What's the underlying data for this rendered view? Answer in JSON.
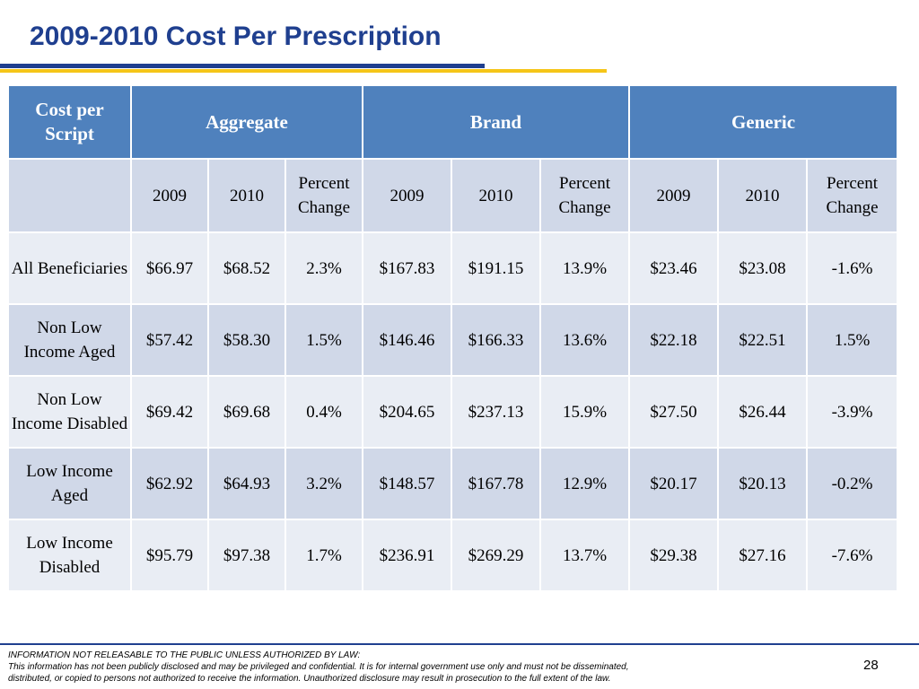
{
  "title": "2009-2010 Cost Per Prescription",
  "table": {
    "header": {
      "corner": "Cost per Script",
      "groups": [
        "Aggregate",
        "Brand",
        "Generic"
      ]
    },
    "subheader": [
      "2009",
      "2010",
      "Percent Change",
      "2009",
      "2010",
      "Percent Change",
      "2009",
      "2010",
      "Percent Change"
    ],
    "rows": [
      {
        "label": "All Beneficiaries",
        "cells": [
          "$66.97",
          "$68.52",
          "2.3%",
          "$167.83",
          "$191.15",
          "13.9%",
          "$23.46",
          "$23.08",
          "-1.6%"
        ]
      },
      {
        "label": "Non Low Income Aged",
        "cells": [
          "$57.42",
          "$58.30",
          "1.5%",
          "$146.46",
          "$166.33",
          "13.6%",
          "$22.18",
          "$22.51",
          "1.5%"
        ]
      },
      {
        "label": "Non Low Income Disabled",
        "cells": [
          "$69.42",
          "$69.68",
          "0.4%",
          "$204.65",
          "$237.13",
          "15.9%",
          "$27.50",
          "$26.44",
          "-3.9%"
        ]
      },
      {
        "label": "Low Income Aged",
        "cells": [
          "$62.92",
          "$64.93",
          "3.2%",
          "$148.57",
          "$167.78",
          "12.9%",
          "$20.17",
          "$20.13",
          "-0.2%"
        ]
      },
      {
        "label": "Low Income Disabled",
        "cells": [
          "$95.79",
          "$97.38",
          "1.7%",
          "$236.91",
          "$269.29",
          "13.7%",
          "$29.38",
          "$27.16",
          "-7.6%"
        ]
      }
    ]
  },
  "footer": {
    "line1": "INFORMATION NOT RELEASABLE TO THE PUBLIC UNLESS AUTHORIZED BY LAW:",
    "line2": "This information has not been publicly disclosed and may be privileged and confidential.  It is for internal government use only and must not be disseminated,",
    "line3": "distributed, or copied to persons not authorized to receive the information.  Unauthorized disclosure may result in prosecution to the full extent of the law."
  },
  "page_number": "28",
  "colors": {
    "title": "#1f3f8f",
    "rule_blue": "#1f3f8f",
    "rule_gold": "#f5c518",
    "header_bg": "#4f81bd",
    "row_light": "#e9edf4",
    "row_dark": "#d0d8e8"
  }
}
